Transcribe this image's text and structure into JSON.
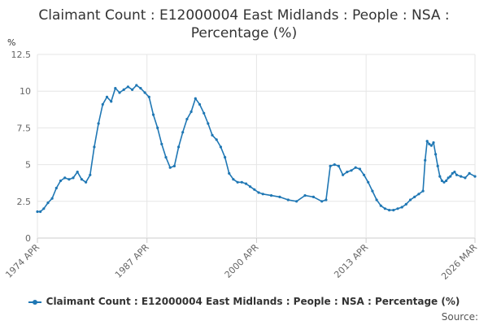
{
  "title_line1": "Claimant Count : E12000004 East Midlands : People : NSA :",
  "title_line2": "Percentage (%)",
  "source_label": "Source:",
  "colors": {
    "series": "#1f77b4",
    "grid": "#e6e6e6",
    "axis": "#cccccc"
  },
  "chart_data": {
    "type": "line",
    "title": "Claimant Count : E12000004 East Midlands : People : NSA : Percentage (%)",
    "ylabel": "%",
    "xlabel": "",
    "ylim": [
      0,
      12.5
    ],
    "yticks": [
      "0",
      "2.5",
      "5",
      "7.5",
      "10",
      "12.5"
    ],
    "xlim": [
      1974.25,
      2026.17
    ],
    "xticks": [
      {
        "label": "1974 APR",
        "x": 1974.25
      },
      {
        "label": "1987 APR",
        "x": 1987.25
      },
      {
        "label": "2000 APR",
        "x": 2000.25
      },
      {
        "label": "2013 APR",
        "x": 2013.25
      },
      {
        "label": "2026 MAR",
        "x": 2026.17
      }
    ],
    "grid": true,
    "legend_position": "bottom",
    "series": [
      {
        "name": "Claimant Count : E12000004 East Midlands : People : NSA : Percentage (%)",
        "x": [
          1974.25,
          1974.6,
          1975.0,
          1975.5,
          1976.0,
          1976.5,
          1977.0,
          1977.5,
          1978.0,
          1978.5,
          1979.0,
          1979.5,
          1980.0,
          1980.5,
          1981.0,
          1981.5,
          1982.0,
          1982.5,
          1983.0,
          1983.5,
          1984.0,
          1984.5,
          1985.0,
          1985.5,
          1986.0,
          1986.5,
          1987.0,
          1987.5,
          1988.0,
          1988.5,
          1989.0,
          1989.5,
          1990.0,
          1990.5,
          1991.0,
          1991.5,
          1992.0,
          1992.5,
          1993.0,
          1993.5,
          1994.0,
          1994.5,
          1995.0,
          1995.5,
          1996.0,
          1996.5,
          1997.0,
          1997.5,
          1998.0,
          1998.5,
          1999.0,
          1999.5,
          2000.0,
          2000.5,
          2001.0,
          2002.0,
          2003.0,
          2004.0,
          2005.0,
          2006.0,
          2007.0,
          2008.0,
          2008.5,
          2009.0,
          2009.5,
          2010.0,
          2010.5,
          2011.0,
          2011.5,
          2012.0,
          2012.5,
          2013.0,
          2013.5,
          2014.0,
          2014.5,
          2015.0,
          2015.5,
          2016.0,
          2016.5,
          2017.0,
          2017.5,
          2018.0,
          2018.5,
          2019.0,
          2019.5,
          2020.0,
          2020.25,
          2020.5,
          2020.75,
          2021.0,
          2021.25,
          2021.5,
          2021.75,
          2022.0,
          2022.25,
          2022.5,
          2022.75,
          2023.0,
          2023.25,
          2023.5,
          2023.75,
          2024.0,
          2024.5,
          2025.0,
          2025.5,
          2026.17
        ],
        "values": [
          1.8,
          1.8,
          2.0,
          2.4,
          2.7,
          3.4,
          3.9,
          4.1,
          4.0,
          4.1,
          4.5,
          4.0,
          3.8,
          4.3,
          6.2,
          7.8,
          9.1,
          9.6,
          9.3,
          10.2,
          9.9,
          10.1,
          10.3,
          10.1,
          10.4,
          10.2,
          9.9,
          9.6,
          8.4,
          7.5,
          6.4,
          5.5,
          4.8,
          4.9,
          6.2,
          7.2,
          8.1,
          8.6,
          9.5,
          9.1,
          8.5,
          7.8,
          7.0,
          6.7,
          6.2,
          5.5,
          4.4,
          4.0,
          3.8,
          3.8,
          3.7,
          3.5,
          3.3,
          3.1,
          3.0,
          2.9,
          2.8,
          2.6,
          2.5,
          2.9,
          2.8,
          2.5,
          2.6,
          4.9,
          5.0,
          4.9,
          4.3,
          4.5,
          4.6,
          4.8,
          4.7,
          4.3,
          3.8,
          3.2,
          2.6,
          2.2,
          2.0,
          1.9,
          1.9,
          2.0,
          2.1,
          2.3,
          2.6,
          2.8,
          3.0,
          3.2,
          5.3,
          6.6,
          6.4,
          6.3,
          6.5,
          5.7,
          4.9,
          4.2,
          3.9,
          3.8,
          3.9,
          4.1,
          4.2,
          4.4,
          4.5,
          4.3,
          4.2,
          4.1,
          4.4,
          4.2
        ]
      }
    ]
  }
}
